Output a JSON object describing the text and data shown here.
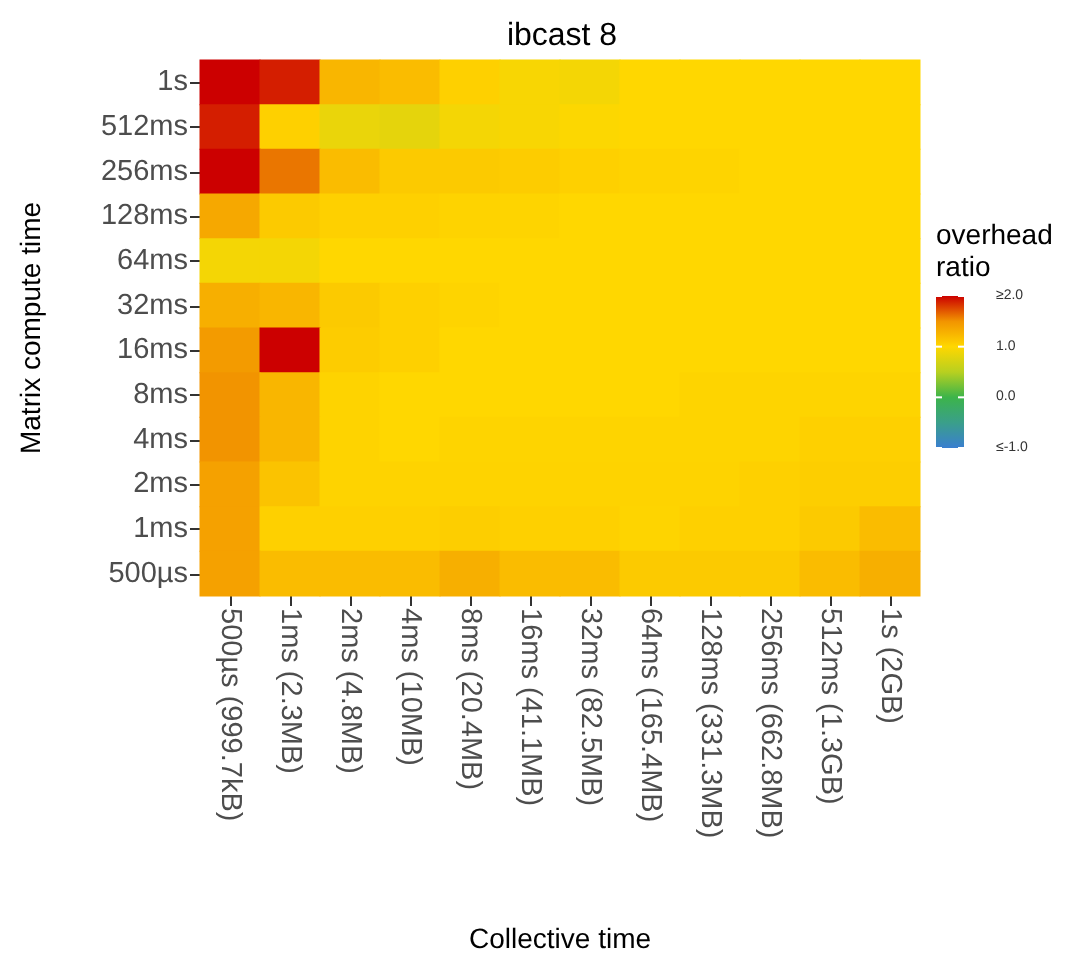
{
  "chart_data": {
    "type": "heatmap",
    "title": "ibcast 8",
    "xlabel": "Collective time",
    "ylabel": "Matrix compute time",
    "clabel": "overhead\nratio",
    "categories": [
      "500µs (999.7kB)",
      "1ms (2.3MB)",
      "2ms (4.8MB)",
      "4ms (10MB)",
      "8ms (20.4MB)",
      "16ms (41.1MB)",
      "32ms (82.5MB)",
      "64ms (165.4MB)",
      "128ms (331.3MB)",
      "256ms (662.8MB)",
      "512ms (1.3GB)",
      "1s (2GB)"
    ],
    "y_categories": [
      "1s",
      "512ms",
      "256ms",
      "128ms",
      "64ms",
      "32ms",
      "16ms",
      "8ms",
      "4ms",
      "2ms",
      "1ms",
      "500µs"
    ],
    "cells": [
      [
        2.0,
        1.9,
        1.25,
        1.2,
        1.05,
        0.95,
        0.92,
        1.0,
        1.0,
        1.0,
        1.0,
        1.0
      ],
      [
        1.9,
        1.05,
        0.85,
        0.82,
        0.92,
        0.95,
        0.98,
        1.0,
        1.0,
        1.0,
        1.0,
        1.0
      ],
      [
        2.0,
        1.6,
        1.2,
        1.1,
        1.1,
        1.08,
        1.05,
        1.03,
        1.02,
        1.0,
        1.0,
        1.0
      ],
      [
        1.35,
        1.1,
        1.05,
        1.05,
        1.03,
        1.02,
        1.0,
        1.0,
        1.0,
        1.0,
        1.0,
        1.0
      ],
      [
        0.92,
        0.92,
        1.0,
        1.0,
        1.0,
        1.0,
        1.0,
        1.0,
        1.0,
        1.0,
        1.0,
        1.0
      ],
      [
        1.3,
        1.25,
        1.1,
        1.05,
        1.02,
        1.0,
        1.0,
        1.0,
        1.0,
        1.0,
        1.0,
        1.0
      ],
      [
        1.45,
        2.0,
        1.08,
        1.05,
        1.0,
        1.0,
        1.0,
        1.0,
        1.0,
        1.0,
        1.0,
        1.0
      ],
      [
        1.5,
        1.25,
        1.03,
        1.0,
        1.0,
        1.0,
        1.0,
        1.0,
        1.02,
        1.02,
        1.02,
        1.02
      ],
      [
        1.5,
        1.25,
        1.03,
        1.0,
        1.02,
        1.02,
        1.02,
        1.02,
        1.02,
        1.02,
        1.05,
        1.05
      ],
      [
        1.4,
        1.15,
        1.03,
        1.03,
        1.03,
        1.03,
        1.03,
        1.03,
        1.03,
        1.05,
        1.07,
        1.07
      ],
      [
        1.4,
        1.05,
        1.05,
        1.05,
        1.07,
        1.05,
        1.05,
        1.02,
        1.05,
        1.05,
        1.1,
        1.2
      ],
      [
        1.4,
        1.2,
        1.2,
        1.2,
        1.3,
        1.2,
        1.2,
        1.1,
        1.1,
        1.1,
        1.2,
        1.3
      ]
    ],
    "clim": [
      -1,
      2
    ],
    "cticks": [
      {
        "value": -1,
        "label": "≤-1.0"
      },
      {
        "value": 0,
        "label": "0.0"
      },
      {
        "value": 1,
        "label": "1.0"
      },
      {
        "value": 2,
        "label": "≥2.0"
      }
    ],
    "grid": false
  }
}
